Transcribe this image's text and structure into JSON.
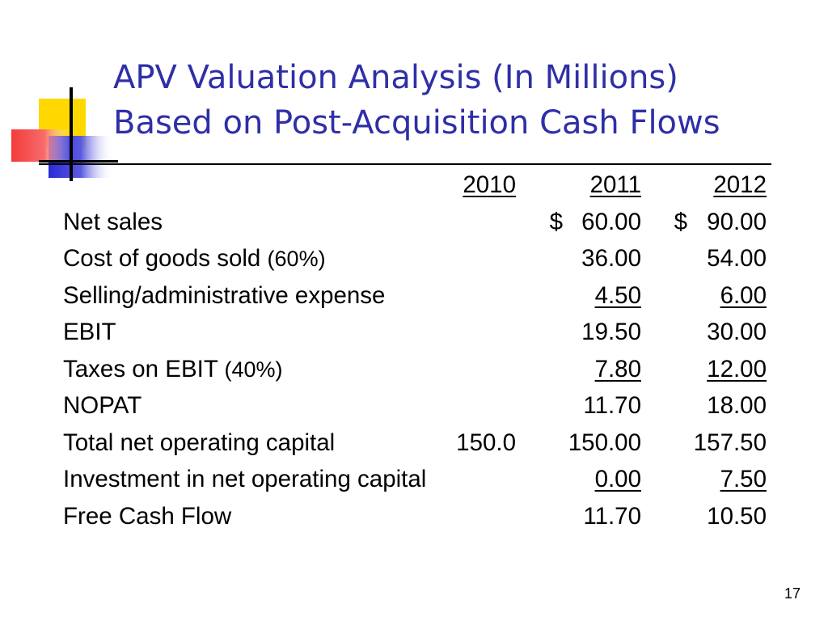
{
  "title": {
    "line1": "APV Valuation Analysis (In Millions)",
    "line2": "Based on Post-Acquisition Cash Flows"
  },
  "table": {
    "headers": {
      "y2010": "2010",
      "y2011": "2011",
      "y2012": "2012"
    },
    "rows": [
      {
        "label": "Net sales",
        "y2010": "",
        "y2011": "60.00",
        "y2012": "90.00",
        "cur2011": "$",
        "cur2012": "$",
        "underline": false
      },
      {
        "label": "Cost of goods sold ",
        "label_pct": "(60%)",
        "y2010": "",
        "y2011": "36.00",
        "y2012": "54.00",
        "underline": false
      },
      {
        "label": "Selling/administrative expense",
        "y2010": "",
        "y2011": "4.50",
        "y2012": "6.00",
        "underline": true
      },
      {
        "label": "EBIT",
        "y2010": "",
        "y2011": "19.50",
        "y2012": "30.00",
        "underline": false
      },
      {
        "label": "Taxes on EBIT ",
        "label_pct": "(40%)",
        "y2010": "",
        "y2011": "7.80",
        "y2012": "12.00",
        "underline": true
      },
      {
        "label": "NOPAT",
        "y2010": "",
        "y2011": "11.70",
        "y2012": "18.00",
        "underline": false
      },
      {
        "label": "Total net operating capital",
        "y2010": "150.0",
        "y2011": "150.00",
        "y2012": "157.50",
        "underline": false
      },
      {
        "label": "Investment in net operating capital",
        "y2010": "",
        "y2011": "0.00",
        "y2012": "7.50",
        "underline": true
      },
      {
        "label": "Free Cash Flow",
        "y2010": "",
        "y2011": "11.70",
        "y2012": "10.50",
        "underline": false
      }
    ]
  },
  "page_number": "17",
  "colors": {
    "title": "#2f2fa8",
    "deco_yellow": "#ffd800",
    "deco_red": "#f43b3b",
    "deco_blue": "#2a2ad6"
  }
}
